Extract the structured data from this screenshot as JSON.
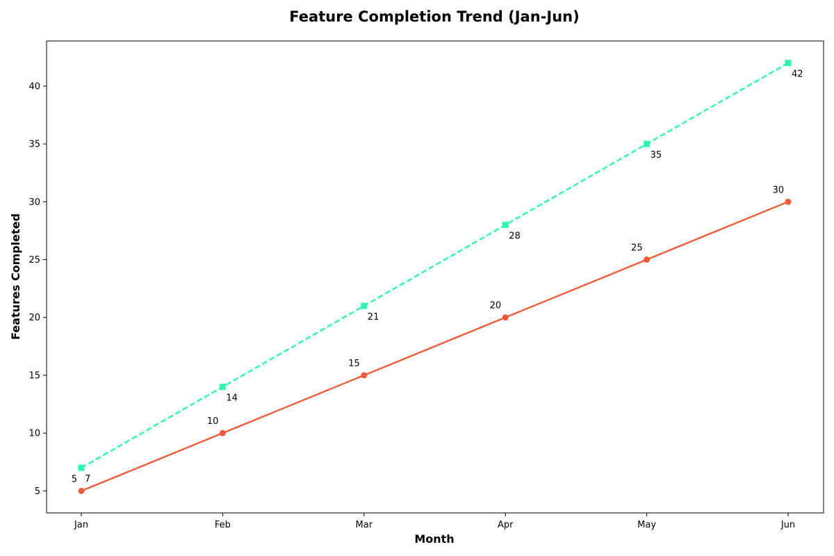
{
  "chart_data": {
    "type": "line",
    "title": "Feature Completion Trend (Jan-Jun)",
    "xlabel": "Month",
    "ylabel": "Features Completed",
    "categories": [
      "Jan",
      "Feb",
      "Mar",
      "Apr",
      "May",
      "Jun"
    ],
    "ylim": [
      3.1,
      43.9
    ],
    "yticks": [
      5,
      10,
      15,
      20,
      25,
      30,
      35,
      40
    ],
    "grid": false,
    "series": [
      {
        "values": [
          5,
          10,
          15,
          20,
          25,
          30
        ],
        "color": "#f05a3a",
        "line_style": "solid",
        "marker": "circle",
        "label_position": "above-left"
      },
      {
        "values": [
          7,
          14,
          21,
          28,
          35,
          42
        ],
        "color": "#2ef5b0",
        "line_style": "dashed",
        "marker": "square",
        "label_position": "below-right"
      }
    ]
  }
}
